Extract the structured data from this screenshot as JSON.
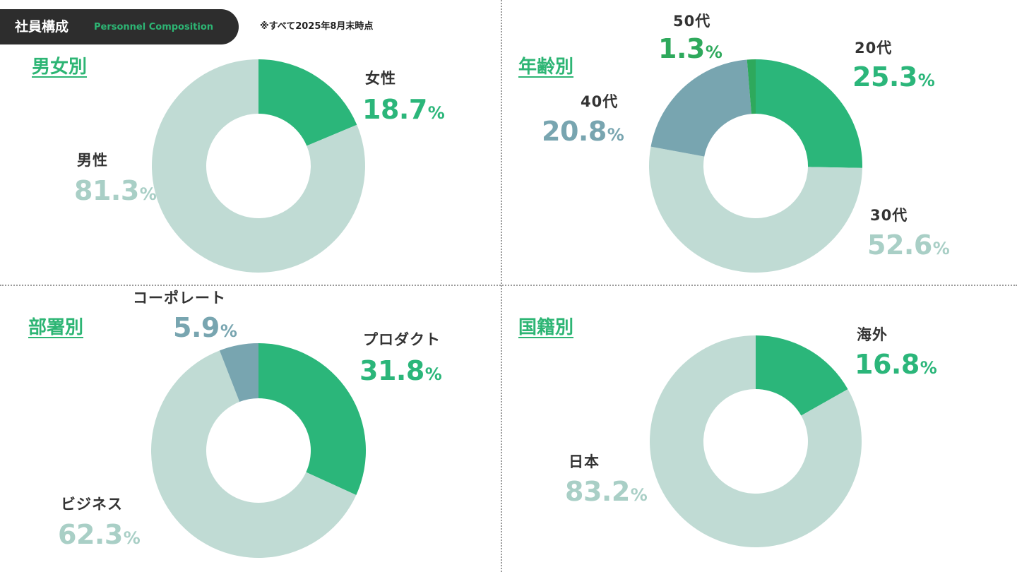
{
  "header": {
    "title": "社員構成",
    "subtitle": "Personnel Composition",
    "note": "※すべて2025年8月末時点"
  },
  "colors": {
    "primary_green": "#2bb67a",
    "light_green": "#c0dbd4",
    "slate_blue": "#78a5b0",
    "bright_green": "#2ea95c",
    "header_bg": "#2d2d2d"
  },
  "chart_data": [
    {
      "type": "pie",
      "title": "男女別",
      "categories": [
        "女性",
        "男性"
      ],
      "values": [
        18.7,
        81.3
      ],
      "value_labels": [
        "18.7",
        "81.3"
      ],
      "unit": "%",
      "colors": [
        "#2bb67a",
        "#c0dbd4"
      ]
    },
    {
      "type": "pie",
      "title": "年齢別",
      "categories": [
        "20代",
        "30代",
        "40代",
        "50代"
      ],
      "values": [
        25.3,
        52.6,
        20.8,
        1.3
      ],
      "value_labels": [
        "25.3",
        "52.6",
        "20.8",
        "1.3"
      ],
      "unit": "%",
      "colors": [
        "#2bb67a",
        "#c0dbd4",
        "#78a5b0",
        "#2ea95c"
      ]
    },
    {
      "type": "pie",
      "title": "部署別",
      "categories": [
        "プロダクト",
        "ビジネス",
        "コーポレート"
      ],
      "values": [
        31.8,
        62.3,
        5.9
      ],
      "value_labels": [
        "31.8",
        "62.3",
        "5.9"
      ],
      "unit": "%",
      "colors": [
        "#2bb67a",
        "#c0dbd4",
        "#78a5b0"
      ]
    },
    {
      "type": "pie",
      "title": "国籍別",
      "categories": [
        "海外",
        "日本"
      ],
      "values": [
        16.8,
        83.2
      ],
      "value_labels": [
        "16.8",
        "83.2"
      ],
      "unit": "%",
      "colors": [
        "#2bb67a",
        "#c0dbd4"
      ]
    }
  ]
}
